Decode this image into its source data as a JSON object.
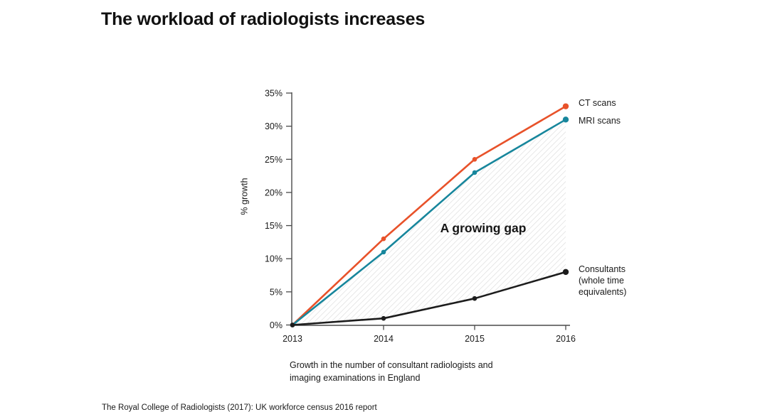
{
  "slide": {
    "title": "The workload of radiologists increases",
    "caption": "Growth in the number of consultant radiologists and\nimaging examinations in England",
    "footnote": "The Royal College of Radiologists (2017): UK workforce census 2016 report"
  },
  "chart_data": {
    "type": "line",
    "categories": [
      "2013",
      "2014",
      "2015",
      "2016"
    ],
    "series": [
      {
        "name": "CT scans",
        "values": [
          0,
          13,
          25,
          33
        ],
        "color": "#e8522a"
      },
      {
        "name": "MRI scans",
        "values": [
          0,
          11,
          23,
          31
        ],
        "color": "#17869c"
      },
      {
        "name": "Consultants (whole time equivalents)",
        "values": [
          0,
          1,
          4,
          8
        ],
        "color": "#1c1c1c"
      }
    ],
    "ylabel": "% growth",
    "xlabel": "",
    "ylim": [
      0,
      35
    ],
    "ytick_step": 5,
    "ytick_labels": [
      "0%",
      "5%",
      "10%",
      "15%",
      "20%",
      "25%",
      "30%",
      "35%"
    ],
    "grid": false,
    "legend_position": "labels-at-line-ends-right",
    "annotation": "A growing gap",
    "hatched_gap_between": [
      "MRI scans",
      "Consultants (whole time equivalents)"
    ],
    "axis_color": "#4a4a4a",
    "hatch_line_color": "#d9d9d9"
  },
  "legend": {
    "ct": "CT scans",
    "mri": "MRI scans",
    "consultants": "Consultants\n(whole time\nequivalents)"
  }
}
